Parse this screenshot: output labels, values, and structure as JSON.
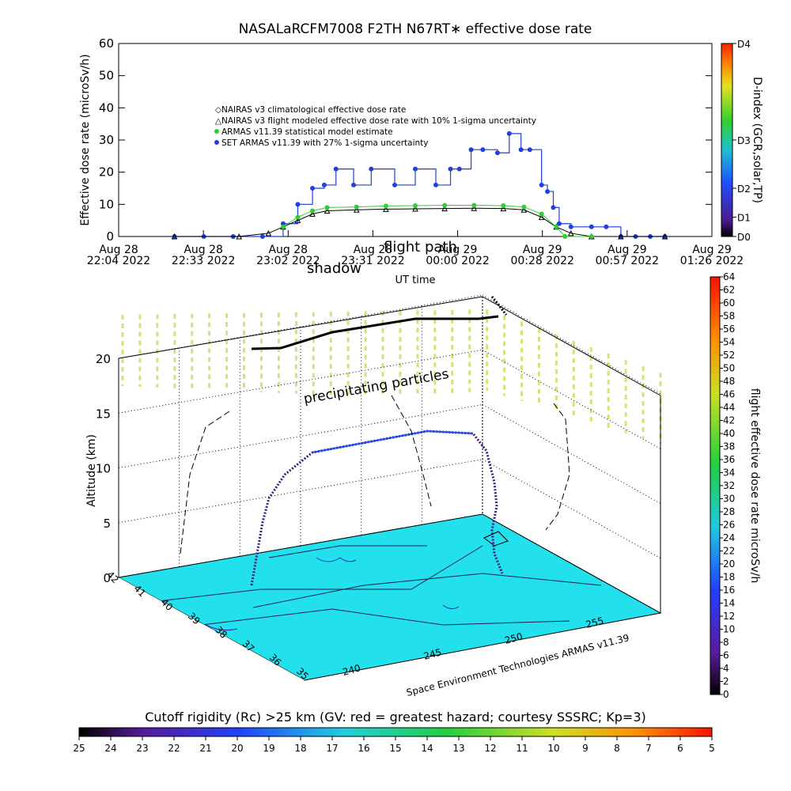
{
  "header": {
    "title": "NASALaRCFM7008  F2TH N67RT∗ effective dose rate"
  },
  "colors": {
    "nairas_climatological": "#ff7070",
    "nairas_flight": "#000000",
    "armas_statistical": "#33cc33",
    "set_armas": "#1f3fe0",
    "ground_fill": "#22e0ec",
    "dose_grid": "#c8e060"
  },
  "chart_data": [
    {
      "type": "line",
      "title": "NASALaRCFM7008  F2TH N67RT∗ effective dose rate",
      "xlabel": "UT time",
      "ylabel": "Effective dose rate (microSv/h)",
      "ylim": [
        0,
        60
      ],
      "yticks": [
        0,
        10,
        20,
        30,
        40,
        50,
        60
      ],
      "xticks": [
        [
          "Aug 28",
          "22:04 2022"
        ],
        [
          "Aug 28",
          "22:33 2022"
        ],
        [
          "Aug 28",
          "23:02 2022"
        ],
        [
          "Aug 28",
          "23:31 2022"
        ],
        [
          "Aug 29",
          "00:00 2022"
        ],
        [
          "Aug 29",
          "00:28 2022"
        ],
        [
          "Aug 29",
          "00:57 2022"
        ],
        [
          "Aug 29",
          "01:26 2022"
        ]
      ],
      "xlim": [
        "22:04",
        "01:26"
      ],
      "annotations": [
        "shadow",
        "flight path"
      ],
      "right_axis": {
        "label": "D-index (GCR,solar,TP)",
        "ticks": [
          "D0",
          "D1",
          "D2",
          "D3",
          "D4"
        ]
      },
      "legend": {
        "position": "upper-left inside plot",
        "entries": [
          "NAIRAS v3 climatological effective dose rate",
          "NAIRAS v3 flight modeled effective dose rate with 10% 1-sigma uncertainty",
          "ARMAS v11.39 statistical model estimate",
          "SET ARMAS v11.39 with 27% 1-sigma uncertainty"
        ]
      },
      "series": [
        {
          "name": "SET ARMAS v11.39 with 27% 1-sigma uncertainty",
          "x": [
            "22:23",
            "22:33",
            "22:43",
            "22:53",
            "23:00",
            "23:05",
            "23:10",
            "23:14",
            "23:18",
            "23:24",
            "23:30",
            "23:38",
            "23:45",
            "23:52",
            "23:57",
            "24:00",
            "24:04",
            "24:08",
            "24:13",
            "24:17",
            "24:21",
            "24:24",
            "24:28",
            "24:30",
            "24:32",
            "24:34",
            "24:38",
            "24:45",
            "24:50",
            "24:55",
            "25:00",
            "25:05",
            "25:10"
          ],
          "values": [
            0,
            0,
            0,
            0,
            4,
            10,
            15,
            16,
            21,
            16,
            21,
            16,
            21,
            16,
            21,
            21,
            27,
            27,
            26,
            32,
            27,
            27,
            16,
            14,
            9,
            4,
            3,
            3,
            3,
            0,
            0,
            0,
            0
          ]
        },
        {
          "name": "NAIRAS v3 flight modeled effective dose rate with 10% 1-sigma uncertainty",
          "x": [
            "22:23",
            "22:45",
            "22:55",
            "23:00",
            "23:05",
            "23:10",
            "23:15",
            "23:25",
            "23:35",
            "23:45",
            "23:55",
            "24:05",
            "24:15",
            "24:22",
            "24:28",
            "24:33",
            "24:38",
            "24:45",
            "24:55",
            "25:10"
          ],
          "values": [
            0,
            0,
            1,
            3,
            5,
            7,
            8,
            8.3,
            8.5,
            8.6,
            8.7,
            8.8,
            8.7,
            8.3,
            6,
            3,
            1,
            0,
            0,
            0
          ]
        },
        {
          "name": "ARMAS v11.39 statistical model estimate",
          "x": [
            "23:00",
            "23:05",
            "23:10",
            "23:15",
            "23:25",
            "23:35",
            "23:45",
            "23:55",
            "24:05",
            "24:15",
            "24:22",
            "24:28",
            "24:33",
            "24:36",
            "24:45"
          ],
          "values": [
            3,
            6,
            8,
            9,
            9.2,
            9.5,
            9.6,
            9.7,
            9.7,
            9.6,
            9.2,
            7,
            3,
            0,
            0
          ]
        }
      ]
    },
    {
      "type": "scatter",
      "title": "",
      "zlabel": "Altitude (km)",
      "zticks": [
        0,
        5,
        10,
        15,
        20
      ],
      "latitude_ticks": [
        "42",
        "41",
        "40",
        "39",
        "38",
        "37",
        "36",
        "35"
      ],
      "longitude_ticks": [
        "240",
        "245",
        "250",
        "255"
      ],
      "annotations": [
        "precipitating particles"
      ],
      "credit": "Space Environment Technologies ARMAS v11.39",
      "colorbar": {
        "label": "flight effective dose rate microSv/h",
        "range": [
          0,
          64
        ],
        "ticks": [
          0,
          2,
          4,
          6,
          8,
          10,
          12,
          14,
          16,
          18,
          20,
          22,
          24,
          26,
          28,
          30,
          32,
          34,
          36,
          38,
          40,
          42,
          44,
          46,
          48,
          50,
          52,
          54,
          56,
          58,
          60,
          62,
          64
        ]
      },
      "flight_altitude_km": {
        "x": [
          "22:23",
          "23:00",
          "23:10",
          "23:30",
          "24:00",
          "24:20",
          "24:28",
          "24:33",
          "24:45"
        ],
        "values": [
          0,
          0,
          11.5,
          12.5,
          13.5,
          13.5,
          10,
          5,
          0
        ]
      }
    },
    {
      "type": "heatmap",
      "title": "Cutoff rigidity (Rc) >25 km (GV: red = greatest hazard; courtesy SSSRC; Kp=3)",
      "colorbar_ticks": [
        "25",
        "24",
        "23",
        "22",
        "21",
        "20",
        "19",
        "18",
        "17",
        "16",
        "15",
        "14",
        "13",
        "12",
        "11",
        "10",
        "9",
        "8",
        "7",
        "6",
        "5"
      ]
    }
  ]
}
